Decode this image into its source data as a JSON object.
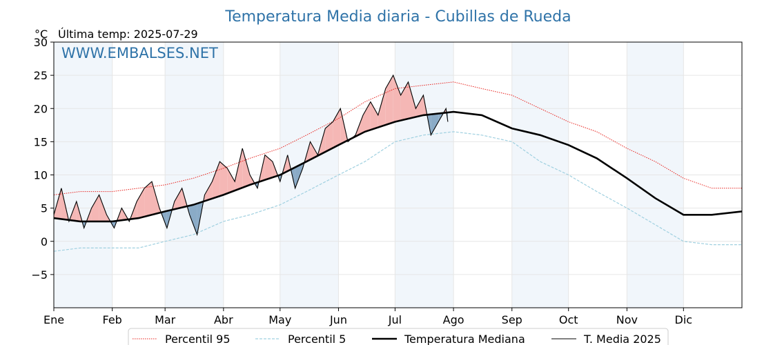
{
  "chart_data": {
    "type": "line",
    "title": "Temperatura Media diaria - Cubillas de Rueda",
    "subtitle": "Última temp: 2025-07-29",
    "unit_label": "°C",
    "watermark": "WWW.EMBALSES.NET",
    "ylim": [
      -10,
      30
    ],
    "yticks": [
      -5,
      0,
      5,
      10,
      15,
      20,
      25,
      30
    ],
    "ytick_labels": [
      "−5",
      "0",
      "5",
      "10",
      "15",
      "20",
      "25",
      "30"
    ],
    "xlim": [
      1,
      366
    ],
    "month_labels": [
      "Ene",
      "Feb",
      "Mar",
      "Abr",
      "May",
      "Jun",
      "Jul",
      "Ago",
      "Sep",
      "Oct",
      "Nov",
      "Dic"
    ],
    "month_start_days": [
      1,
      32,
      60,
      91,
      121,
      152,
      182,
      213,
      244,
      274,
      305,
      335
    ],
    "grid": true,
    "legend_position": "bottom-center",
    "series": [
      {
        "name": "Percentil 95",
        "style": "dotted-red",
        "color": "#e8231e",
        "x": [
          1,
          15,
          32,
          46,
          60,
          75,
          91,
          105,
          121,
          135,
          152,
          166,
          182,
          197,
          213,
          228,
          244,
          259,
          274,
          289,
          305,
          320,
          335,
          350,
          366
        ],
        "values": [
          7,
          7.5,
          7.5,
          8,
          8.5,
          9.5,
          11,
          12.5,
          14,
          16,
          18.5,
          21,
          23,
          23.5,
          24,
          23,
          22,
          20,
          18,
          16.5,
          14,
          12,
          9.5,
          8,
          8
        ]
      },
      {
        "name": "Percentil 5",
        "style": "dashed-lightblue",
        "color": "#9fd0e0",
        "x": [
          1,
          15,
          32,
          46,
          60,
          75,
          91,
          105,
          121,
          135,
          152,
          166,
          182,
          197,
          213,
          228,
          244,
          259,
          274,
          289,
          305,
          320,
          335,
          350,
          366
        ],
        "values": [
          -1.5,
          -1,
          -1,
          -1,
          0,
          1,
          3,
          4,
          5.5,
          7.5,
          10,
          12,
          15,
          16,
          16.5,
          16,
          15,
          12,
          10,
          7.5,
          5,
          2.5,
          0,
          -0.5,
          -0.5
        ]
      },
      {
        "name": "Temperatura Mediana",
        "style": "thick-black",
        "color": "#000000",
        "x": [
          1,
          15,
          32,
          46,
          60,
          75,
          91,
          105,
          121,
          135,
          152,
          166,
          182,
          197,
          213,
          228,
          244,
          259,
          274,
          289,
          305,
          320,
          335,
          350,
          366
        ],
        "values": [
          3.5,
          3,
          3,
          3.5,
          4.5,
          5.5,
          7,
          8.5,
          10,
          12,
          14.5,
          16.5,
          18,
          19,
          19.5,
          19,
          17,
          16,
          14.5,
          12.5,
          9.5,
          6.5,
          4,
          4,
          4.5
        ]
      },
      {
        "name": "T. Media 2025",
        "style": "thin-black",
        "color": "#000000",
        "x": [
          1,
          5,
          9,
          13,
          17,
          21,
          25,
          29,
          33,
          37,
          41,
          45,
          49,
          53,
          57,
          61,
          65,
          69,
          73,
          77,
          81,
          85,
          89,
          93,
          97,
          101,
          105,
          109,
          113,
          117,
          121,
          125,
          129,
          133,
          137,
          141,
          145,
          149,
          153,
          157,
          161,
          165,
          169,
          173,
          177,
          181,
          185,
          189,
          193,
          197,
          201,
          205,
          209,
          210
        ],
        "values": [
          4,
          8,
          3,
          6,
          2,
          5,
          7,
          4,
          2,
          5,
          3,
          6,
          8,
          9,
          5,
          2,
          6,
          8,
          4,
          1,
          7,
          9,
          12,
          11,
          9,
          14,
          10,
          8,
          13,
          12,
          9,
          13,
          8,
          11,
          15,
          13,
          17,
          18,
          20,
          15,
          16,
          19,
          21,
          19,
          23,
          25,
          22,
          24,
          20,
          22,
          16,
          18,
          20,
          18
        ]
      }
    ]
  }
}
